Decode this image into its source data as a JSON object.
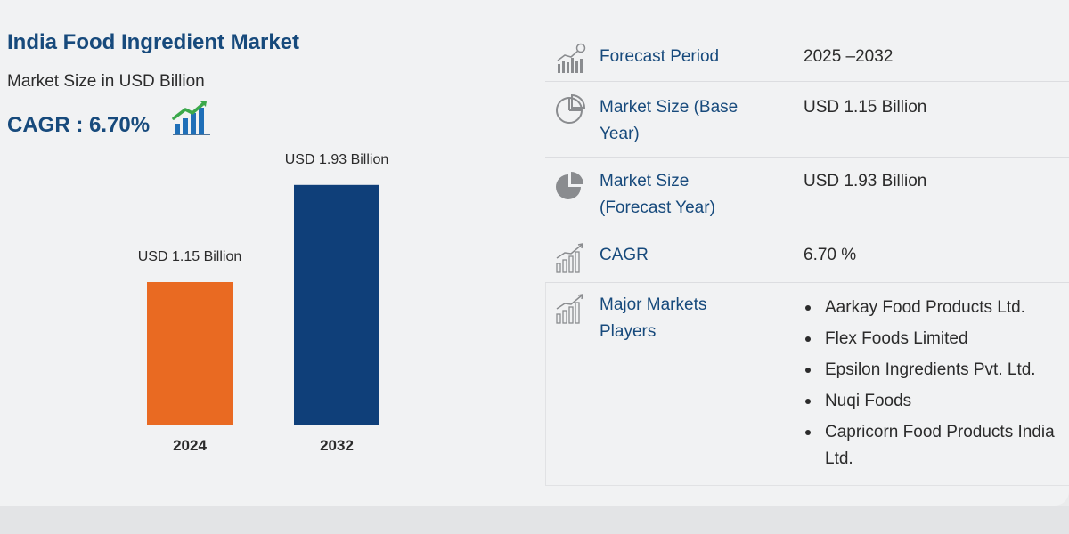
{
  "header": {
    "title": "India Food Ingredient Market",
    "subtitle": "Market Size in USD Billion",
    "cagr": "CAGR : 6.70%"
  },
  "chart_data": {
    "type": "bar",
    "categories": [
      "2024",
      "2032"
    ],
    "values": [
      1.15,
      1.93
    ],
    "data_labels": [
      "USD 1.15 Billion",
      "USD 1.93 Billion"
    ],
    "colors": [
      "#e96a22",
      "#0f3f79"
    ],
    "title": "India Food Ingredient Market",
    "ylabel": "Market Size in USD Billion",
    "ylim": [
      0,
      2.2
    ],
    "grid": false,
    "legend": "none"
  },
  "panel": {
    "rows": [
      {
        "icon": "bar-chart-clock-icon",
        "label": "Forecast Period",
        "value": "2025 –2032"
      },
      {
        "icon": "pie-chart-outline-icon",
        "label": "Market Size (Base Year)",
        "value": "USD 1.15 Billion"
      },
      {
        "icon": "pie-chart-filled-icon",
        "label": "Market Size (Forecast Year)",
        "value": "USD 1.93 Billion"
      },
      {
        "icon": "growth-chart-icon",
        "label": "CAGR",
        "value": "6.70 %"
      },
      {
        "icon": "growth-chart-icon",
        "label": "Major Markets Players",
        "value": ""
      }
    ],
    "players": [
      "Aarkay Food Products Ltd.",
      "Flex Foods Limited",
      "Epsilon Ingredients Pvt. Ltd.",
      "Nuqi Foods",
      "Capricorn Food Products India Ltd."
    ]
  },
  "colors": {
    "accent": "#174a7c",
    "bar_2024": "#e96a22",
    "bar_2032": "#0f3f79"
  }
}
